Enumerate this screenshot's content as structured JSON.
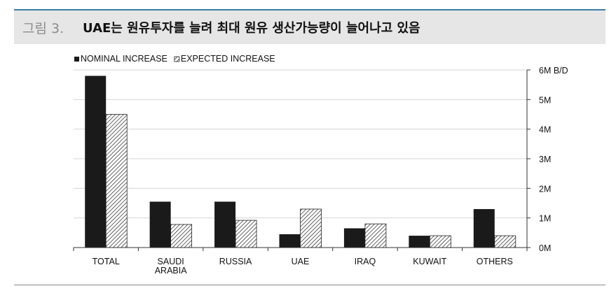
{
  "figure": {
    "label": "그림 3.",
    "title": "UAE는 원유투자를 늘려 최대 원유 생산가능량이 늘어나고 있음"
  },
  "chart_data": {
    "type": "bar",
    "categories": [
      "TOTAL",
      "SAUDI\nARABIA",
      "RUSSIA",
      "UAE",
      "IRAQ",
      "KUWAIT",
      "OTHERS"
    ],
    "series": [
      {
        "name": "NOMINAL INCREASE",
        "values": [
          5.8,
          1.55,
          1.55,
          0.45,
          0.65,
          0.4,
          1.3
        ],
        "color": "#1a1a1a",
        "pattern": "solid"
      },
      {
        "name": "EXPECTED INCREASE",
        "values": [
          4.5,
          0.78,
          0.92,
          1.3,
          0.8,
          0.4,
          0.4
        ],
        "color": "#ffffff",
        "pattern": "hatched"
      }
    ],
    "y_ticks": [
      "0M",
      "1M",
      "2M",
      "3M",
      "4M",
      "5M",
      "6M B/D"
    ],
    "ylim": [
      0,
      6
    ],
    "y_axis_side": "right",
    "grid": true,
    "legend_position": "top-left"
  }
}
